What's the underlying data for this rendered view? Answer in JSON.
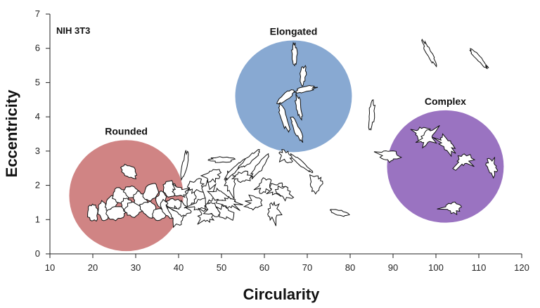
{
  "chart_data": {
    "type": "scatter",
    "title": "",
    "annotation": "NIH 3T3",
    "xlabel": "Circularity",
    "ylabel": "Eccentricity",
    "xlim": [
      10,
      120
    ],
    "ylim": [
      0,
      7
    ],
    "xticks": [
      10,
      20,
      30,
      40,
      50,
      60,
      70,
      80,
      90,
      100,
      110,
      120
    ],
    "yticks": [
      0,
      1,
      2,
      3,
      4,
      5,
      6,
      7
    ],
    "grid": false,
    "clusters": [
      {
        "name": "Rounded",
        "cx": 27.8,
        "cy": 1.7,
        "rx": 13.3,
        "ry": 1.62,
        "color": "#d08484"
      },
      {
        "name": "Elongated",
        "cx": 66.8,
        "cy": 4.6,
        "rx": 13.6,
        "ry": 1.63,
        "color": "#88a9d2"
      },
      {
        "name": "Complex",
        "cx": 102.2,
        "cy": 2.55,
        "rx": 13.6,
        "ry": 1.64,
        "color": "#9a73c1"
      }
    ],
    "points": [
      {
        "x": 20,
        "y": 1.2,
        "shape": "round"
      },
      {
        "x": 22.5,
        "y": 1.25,
        "shape": "round"
      },
      {
        "x": 24.5,
        "y": 1.5,
        "shape": "round"
      },
      {
        "x": 25.5,
        "y": 1.2,
        "shape": "round"
      },
      {
        "x": 26.5,
        "y": 1.7,
        "shape": "round"
      },
      {
        "x": 28,
        "y": 1.4,
        "shape": "round"
      },
      {
        "x": 29,
        "y": 1.8,
        "shape": "round"
      },
      {
        "x": 29.5,
        "y": 1.3,
        "shape": "round"
      },
      {
        "x": 28.5,
        "y": 2.4,
        "shape": "round"
      },
      {
        "x": 31,
        "y": 1.6,
        "shape": "round"
      },
      {
        "x": 33,
        "y": 1.3,
        "shape": "round"
      },
      {
        "x": 33.5,
        "y": 1.8,
        "shape": "round"
      },
      {
        "x": 35.5,
        "y": 1.15,
        "shape": "round"
      },
      {
        "x": 36,
        "y": 1.55,
        "shape": "round"
      },
      {
        "x": 37.5,
        "y": 1.3,
        "shape": "round"
      },
      {
        "x": 38,
        "y": 1.9,
        "shape": "round"
      },
      {
        "x": 39,
        "y": 1.4,
        "shape": "round"
      },
      {
        "x": 39.5,
        "y": 1.1,
        "shape": "complex"
      },
      {
        "x": 40,
        "y": 1.8,
        "shape": "complex"
      },
      {
        "x": 41,
        "y": 1.25,
        "shape": "complex"
      },
      {
        "x": 41.5,
        "y": 2.6,
        "shape": "elong"
      },
      {
        "x": 43,
        "y": 1.7,
        "shape": "complex"
      },
      {
        "x": 44,
        "y": 2.0,
        "shape": "complex"
      },
      {
        "x": 45,
        "y": 1.45,
        "shape": "complex"
      },
      {
        "x": 46.5,
        "y": 1.1,
        "shape": "complex"
      },
      {
        "x": 47,
        "y": 1.75,
        "shape": "complex"
      },
      {
        "x": 48,
        "y": 2.3,
        "shape": "complex"
      },
      {
        "x": 48,
        "y": 1.3,
        "shape": "complex"
      },
      {
        "x": 49.5,
        "y": 1.7,
        "shape": "complex"
      },
      {
        "x": 50,
        "y": 2.75,
        "shape": "elong"
      },
      {
        "x": 50.5,
        "y": 1.2,
        "shape": "complex"
      },
      {
        "x": 52,
        "y": 1.5,
        "shape": "complex"
      },
      {
        "x": 52,
        "y": 2.1,
        "shape": "complex"
      },
      {
        "x": 53,
        "y": 2.45,
        "shape": "elong"
      },
      {
        "x": 55,
        "y": 2.25,
        "shape": "complex"
      },
      {
        "x": 56.5,
        "y": 2.75,
        "shape": "elong"
      },
      {
        "x": 58,
        "y": 1.5,
        "shape": "complex"
      },
      {
        "x": 59,
        "y": 2.55,
        "shape": "elong"
      },
      {
        "x": 60,
        "y": 2.0,
        "shape": "complex"
      },
      {
        "x": 62,
        "y": 1.25,
        "shape": "complex"
      },
      {
        "x": 63,
        "y": 1.9,
        "shape": "complex"
      },
      {
        "x": 64.5,
        "y": 1.8,
        "shape": "complex"
      },
      {
        "x": 65,
        "y": 2.85,
        "shape": "complex"
      },
      {
        "x": 68.5,
        "y": 2.65,
        "shape": "elong"
      },
      {
        "x": 72,
        "y": 2.0,
        "shape": "complex"
      },
      {
        "x": 77.5,
        "y": 1.2,
        "shape": "elong"
      },
      {
        "x": 64.5,
        "y": 4.0,
        "shape": "elong"
      },
      {
        "x": 65,
        "y": 4.6,
        "shape": "elong"
      },
      {
        "x": 67,
        "y": 5.8,
        "shape": "elong"
      },
      {
        "x": 69,
        "y": 5.2,
        "shape": "elong"
      },
      {
        "x": 69.5,
        "y": 4.8,
        "shape": "elong"
      },
      {
        "x": 68,
        "y": 4.3,
        "shape": "elong"
      },
      {
        "x": 67.5,
        "y": 3.65,
        "shape": "elong"
      },
      {
        "x": 85,
        "y": 4.05,
        "shape": "elong"
      },
      {
        "x": 98.5,
        "y": 5.85,
        "shape": "elong"
      },
      {
        "x": 110,
        "y": 5.7,
        "shape": "elong"
      },
      {
        "x": 89,
        "y": 2.85,
        "shape": "complex"
      },
      {
        "x": 96.5,
        "y": 3.5,
        "shape": "complex"
      },
      {
        "x": 98,
        "y": 3.4,
        "shape": "complex"
      },
      {
        "x": 102.5,
        "y": 3.2,
        "shape": "complex"
      },
      {
        "x": 106.5,
        "y": 2.75,
        "shape": "complex"
      },
      {
        "x": 113,
        "y": 2.55,
        "shape": "complex"
      },
      {
        "x": 104,
        "y": 1.35,
        "shape": "complex"
      }
    ]
  }
}
